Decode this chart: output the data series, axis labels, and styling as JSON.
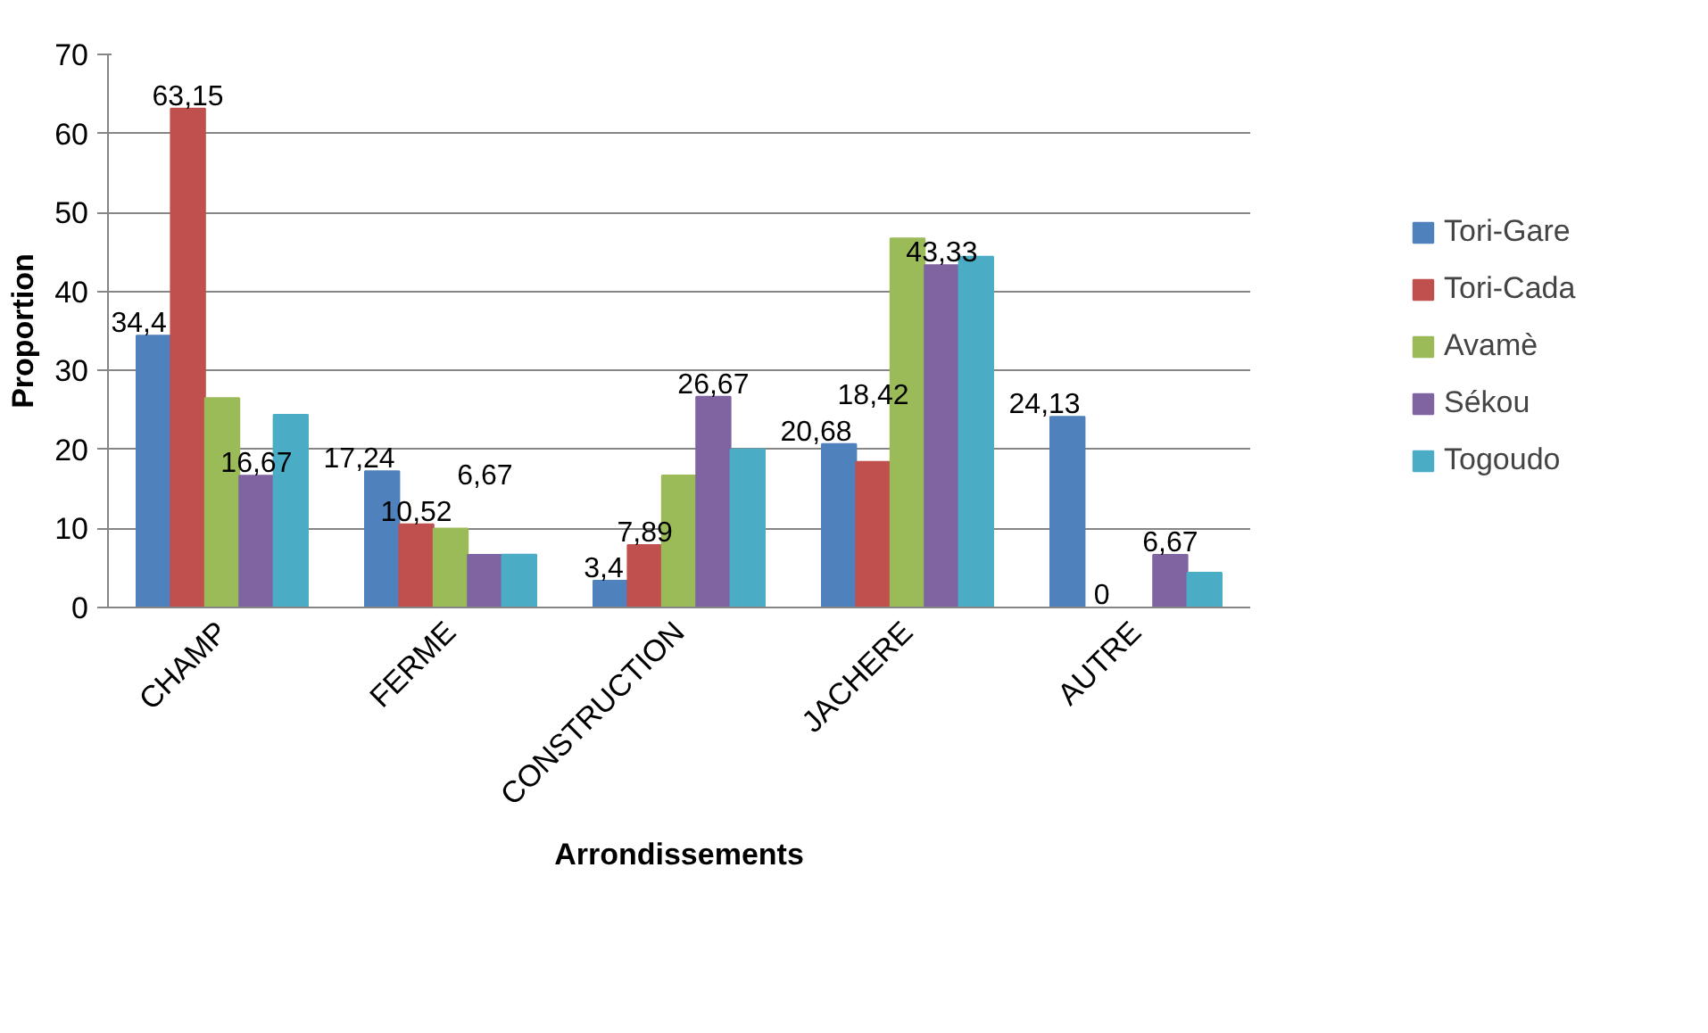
{
  "chart_data": {
    "type": "bar",
    "xlabel": "Arrondissements",
    "ylabel": "Proportion",
    "categories": [
      "CHAMP",
      "FERME",
      "CONSTRUCTION",
      "JACHERE",
      "AUTRE"
    ],
    "ylim": [
      0,
      70
    ],
    "yticks": [
      0,
      10,
      20,
      30,
      40,
      50,
      60,
      70
    ],
    "grid": "y",
    "legend": "right",
    "series": [
      {
        "name": "Tori-Gare",
        "color": "#4f81bd",
        "values": [
          34.4,
          17.24,
          3.4,
          20.68,
          24.13
        ],
        "value_labels": [
          "34,4",
          "17,24",
          "3,4",
          "20,68",
          "24,13"
        ]
      },
      {
        "name": "Tori-Cada",
        "color": "#c0504d",
        "values": [
          63.15,
          10.52,
          7.89,
          18.42,
          0
        ],
        "value_labels": [
          "63,15",
          "10,52",
          "7,89",
          "18,42",
          "0"
        ]
      },
      {
        "name": "Avamè",
        "color": "#9bbb59",
        "values": [
          26.5,
          10,
          16.7,
          46.7,
          0
        ]
      },
      {
        "name": "Sékou",
        "color": "#8064a2",
        "values": [
          16.67,
          6.67,
          26.67,
          43.33,
          6.67
        ],
        "value_labels": [
          "16,67",
          "6,67",
          "26,67",
          "43,33",
          "6,67"
        ]
      },
      {
        "name": "Togoudo",
        "color": "#4bacc6",
        "values": [
          24.4,
          6.7,
          20,
          44.4,
          4.4
        ]
      }
    ]
  }
}
